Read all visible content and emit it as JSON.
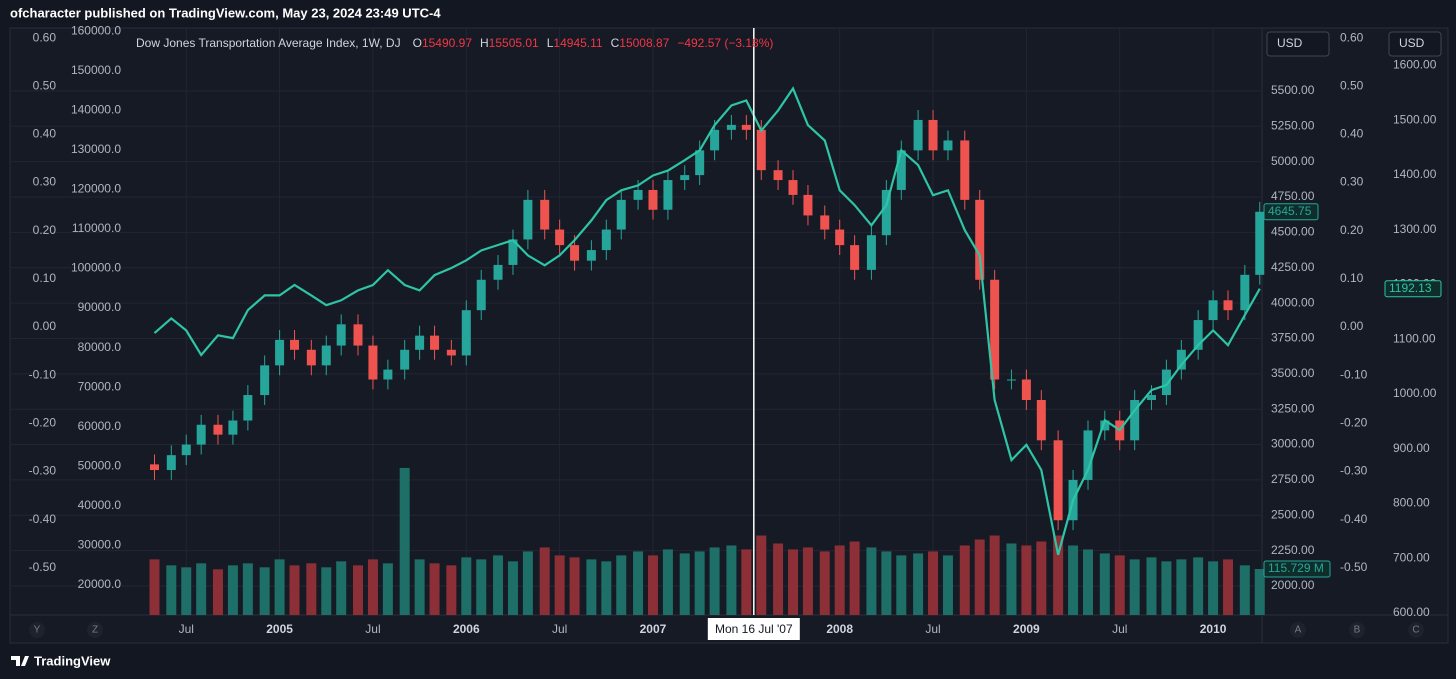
{
  "header": {
    "text": "ofcharacter published on TradingView.com, May 23, 2024 23:49 UTC-4"
  },
  "footer": {
    "brand": "TradingView"
  },
  "chart_data": {
    "type": "candlestick",
    "title": "Dow Jones Transportation Average Index, 1W, DJ",
    "ohlc": [
      {
        "label": "O",
        "value": 15490.97
      },
      {
        "label": "H",
        "value": 15505.01
      },
      {
        "label": "L",
        "value": 14945.11
      },
      {
        "label": "C",
        "value": 15008.87
      }
    ],
    "change": "−492.57 (−3.18%)",
    "currency": "USD",
    "crosshair": {
      "value": 2007.54,
      "label": "Mon 16 Jul '07"
    },
    "toolbar_left": [
      "Y",
      "Z"
    ],
    "toolbar_right": [
      "A",
      "B",
      "C"
    ],
    "up_color": "#26a69a",
    "down_color": "#ef5350",
    "grid": true,
    "xlim": [
      2003.556,
      2010.262
    ],
    "xticks": [
      {
        "value": 2004.5,
        "label": "Jul"
      },
      2005,
      {
        "value": 2005.5,
        "label": "Jul"
      },
      2006,
      {
        "value": 2006.5,
        "label": "Jul"
      },
      2007,
      2008,
      {
        "value": 2008.5,
        "label": "Jul"
      },
      2009,
      {
        "value": 2009.5,
        "label": "Jul"
      },
      2010
    ],
    "x": [
      2004.33,
      2004.42,
      2004.5,
      2004.58,
      2004.67,
      2004.75,
      2004.83,
      2004.92,
      2005,
      2005.08,
      2005.17,
      2005.25,
      2005.33,
      2005.42,
      2005.5,
      2005.58,
      2005.67,
      2005.75,
      2005.83,
      2005.92,
      2006,
      2006.08,
      2006.17,
      2006.25,
      2006.33,
      2006.42,
      2006.5,
      2006.58,
      2006.67,
      2006.75,
      2006.83,
      2006.92,
      2007,
      2007.08,
      2007.17,
      2007.25,
      2007.33,
      2007.42,
      2007.5,
      2007.58,
      2007.67,
      2007.75,
      2007.83,
      2007.92,
      2008,
      2008.08,
      2008.17,
      2008.25,
      2008.33,
      2008.42,
      2008.5,
      2008.58,
      2008.67,
      2008.75,
      2008.83,
      2008.92,
      2009,
      2009.08,
      2009.17,
      2009.25,
      2009.33,
      2009.42,
      2009.5,
      2009.58,
      2009.67,
      2009.75,
      2009.83,
      2009.92,
      2010,
      2010.08,
      2010.17,
      2010.25
    ],
    "open": [
      2860,
      2820,
      2925,
      3000,
      3140,
      3070,
      3170,
      3350,
      3560,
      3740,
      3670,
      3560,
      3700,
      3850,
      3700,
      3460,
      3530,
      3670,
      3770,
      3670,
      3630,
      3950,
      4165,
      4270,
      4450,
      4730,
      4520,
      4410,
      4300,
      4375,
      4520,
      4730,
      4800,
      4660,
      4870,
      4905,
      5080,
      5225,
      5260,
      5225,
      4940,
      4870,
      4765,
      4620,
      4520,
      4410,
      4235,
      4480,
      4800,
      5080,
      5295,
      5080,
      5150,
      4730,
      4165,
      3460,
      3460,
      3315,
      3030,
      2465,
      2750,
      3100,
      3170,
      3030,
      3315,
      3350,
      3530,
      3670,
      3880,
      4020,
      3950,
      4200
    ],
    "high": [
      2930,
      2995,
      3070,
      3210,
      3210,
      3240,
      3420,
      3630,
      3810,
      3810,
      3740,
      3770,
      3920,
      3920,
      3770,
      3600,
      3740,
      3840,
      3840,
      3740,
      4020,
      4235,
      4340,
      4520,
      4800,
      4800,
      4590,
      4480,
      4445,
      4590,
      4800,
      4870,
      4870,
      4940,
      4975,
      5150,
      5295,
      5330,
      5330,
      5295,
      5010,
      4940,
      4835,
      4690,
      4590,
      4480,
      4550,
      4870,
      5150,
      5365,
      5365,
      5220,
      5220,
      4800,
      4235,
      3530,
      3530,
      3385,
      3100,
      2820,
      3170,
      3240,
      3240,
      3385,
      3420,
      3600,
      3740,
      3950,
      4090,
      4090,
      4270,
      4715.75
    ],
    "low": [
      2750,
      2750,
      2855,
      2930,
      3000,
      3000,
      3100,
      3280,
      3490,
      3600,
      3490,
      3490,
      3630,
      3630,
      3390,
      3390,
      3460,
      3600,
      3600,
      3560,
      3560,
      3880,
      4095,
      4200,
      4380,
      4450,
      4340,
      4230,
      4230,
      4305,
      4450,
      4660,
      4590,
      4590,
      4800,
      4835,
      5010,
      5155,
      5155,
      4870,
      4800,
      4695,
      4550,
      4450,
      4340,
      4165,
      4165,
      4410,
      4730,
      5010,
      5010,
      5010,
      4660,
      4095,
      3390,
      3390,
      3245,
      2960,
      2395,
      2395,
      2680,
      3030,
      2960,
      2960,
      3245,
      3280,
      3460,
      3600,
      3810,
      3880,
      3880,
      4130
    ],
    "close": [
      2820,
      2925,
      3000,
      3140,
      3070,
      3170,
      3350,
      3560,
      3740,
      3670,
      3560,
      3700,
      3850,
      3700,
      3460,
      3530,
      3670,
      3770,
      3670,
      3630,
      3950,
      4165,
      4270,
      4450,
      4730,
      4520,
      4410,
      4300,
      4375,
      4520,
      4730,
      4800,
      4660,
      4870,
      4905,
      5080,
      5225,
      5260,
      5225,
      4940,
      4870,
      4765,
      4620,
      4520,
      4410,
      4235,
      4480,
      4800,
      5080,
      5295,
      5080,
      5150,
      4730,
      4165,
      3460,
      3460,
      3315,
      3030,
      2465,
      2750,
      3100,
      3170,
      3030,
      3315,
      3350,
      3530,
      3670,
      3880,
      4020,
      3950,
      4200,
      4645.75
    ],
    "ylim": [
      1795,
      5945
    ],
    "yticks": [
      {
        "value": 5500,
        "label": "5500.00"
      },
      {
        "value": 5250,
        "label": "5250.00"
      },
      {
        "value": 5000,
        "label": "5000.00"
      },
      {
        "value": 4750,
        "label": "4750.00"
      },
      {
        "value": 4500,
        "label": "4500.00"
      },
      {
        "value": 4250,
        "label": "4250.00"
      },
      {
        "value": 4000,
        "label": "4000.00"
      },
      {
        "value": 3750,
        "label": "3750.00"
      },
      {
        "value": 3500,
        "label": "3500.00"
      },
      {
        "value": 3250,
        "label": "3250.00"
      },
      {
        "value": 3000,
        "label": "3000.00"
      },
      {
        "value": 2750,
        "label": "2750.00"
      },
      {
        "value": 2500,
        "label": "2500.00"
      },
      {
        "value": 2250,
        "label": "2250.00"
      },
      {
        "value": 2000,
        "label": "2000.00"
      }
    ],
    "y2lim": [
      -0.598,
      0.621
    ],
    "y2ticks": [
      {
        "value": 0.6,
        "label": "0.60"
      },
      {
        "value": 0.5,
        "label": "0.50"
      },
      {
        "value": 0.4,
        "label": "0.40"
      },
      {
        "value": 0.3,
        "label": "0.30"
      },
      {
        "value": 0.2,
        "label": "0.20"
      },
      {
        "value": 0.1,
        "label": "0.10"
      },
      {
        "value": 0,
        "label": "0.00"
      },
      {
        "value": -0.1,
        "label": "-0.10"
      },
      {
        "value": -0.2,
        "label": "-0.20"
      },
      {
        "value": -0.3,
        "label": "-0.30"
      },
      {
        "value": -0.4,
        "label": "-0.40"
      },
      {
        "value": -0.5,
        "label": "-0.50"
      }
    ],
    "y3lim": [
      596,
      1668.5
    ],
    "y3ticks": [
      {
        "value": 1600,
        "label": "1600.00"
      },
      {
        "value": 1500,
        "label": "1500.00"
      },
      {
        "value": 1400,
        "label": "1400.00"
      },
      {
        "value": 1300,
        "label": "1300.00"
      },
      {
        "value": 1200,
        "label": "1200.00"
      },
      {
        "value": 1100,
        "label": "1100.00"
      },
      {
        "value": 1000,
        "label": "1000.00"
      },
      {
        "value": 900,
        "label": "900.00"
      },
      {
        "value": 800,
        "label": "800.00"
      },
      {
        "value": 700,
        "label": "700.00"
      },
      {
        "value": 600,
        "label": "600.00"
      }
    ],
    "y4lim": [
      12400,
      160800
    ],
    "y4ticks": [
      {
        "value": 160000,
        "label": "160000.0"
      },
      {
        "value": 150000,
        "label": "150000.0"
      },
      {
        "value": 140000,
        "label": "140000.0"
      },
      {
        "value": 130000,
        "label": "130000.0"
      },
      {
        "value": 120000,
        "label": "120000.0"
      },
      {
        "value": 110000,
        "label": "110000.0"
      },
      {
        "value": 100000,
        "label": "100000.0"
      },
      {
        "value": 90000,
        "label": "90000.0"
      },
      {
        "value": 80000,
        "label": "80000.0"
      },
      {
        "value": 70000,
        "label": "70000.0"
      },
      {
        "value": 60000,
        "label": "60000.0"
      },
      {
        "value": 50000,
        "label": "50000.0"
      },
      {
        "value": 40000,
        "label": "40000.0"
      },
      {
        "value": 30000,
        "label": "30000.0"
      },
      {
        "value": 20000,
        "label": "20000.0"
      }
    ],
    "line": {
      "color": "#2ec4a6",
      "axis": "y3",
      "values": [
        1111,
        1138,
        1116,
        1071,
        1107,
        1102,
        1153,
        1180,
        1180,
        1199,
        1180,
        1162,
        1171,
        1189,
        1199,
        1226,
        1199,
        1189,
        1217,
        1230,
        1244,
        1262,
        1272,
        1281,
        1253,
        1235,
        1253,
        1281,
        1317,
        1354,
        1372,
        1381,
        1399,
        1408,
        1427,
        1445,
        1491,
        1527,
        1536,
        1481,
        1518,
        1558,
        1491,
        1463,
        1372,
        1345,
        1308,
        1345,
        1445,
        1418,
        1363,
        1372,
        1299,
        1253,
        989,
        879,
        907,
        861,
        706,
        806,
        861,
        952,
        934,
        970,
        1007,
        1016,
        1053,
        1089,
        1116,
        1089,
        1144,
        1192.13
      ]
    },
    "volume": {
      "vlim": [
        0,
        1477
      ],
      "up_color": "#1d6f68",
      "down_color": "#8c2f37",
      "last_label": "115.729 M",
      "values": [
        140,
        125,
        120,
        130,
        115,
        125,
        130,
        120,
        140,
        125,
        130,
        120,
        135,
        125,
        140,
        130,
        370,
        140,
        130,
        125,
        145,
        140,
        150,
        135,
        160,
        170,
        150,
        145,
        140,
        135,
        150,
        160,
        150,
        165,
        155,
        160,
        170,
        175,
        165,
        200,
        180,
        165,
        170,
        160,
        175,
        185,
        170,
        160,
        150,
        155,
        160,
        150,
        175,
        190,
        200,
        180,
        175,
        185,
        200,
        175,
        165,
        155,
        150,
        140,
        145,
        135,
        140,
        145,
        135,
        140,
        125,
        115.729
      ]
    }
  }
}
